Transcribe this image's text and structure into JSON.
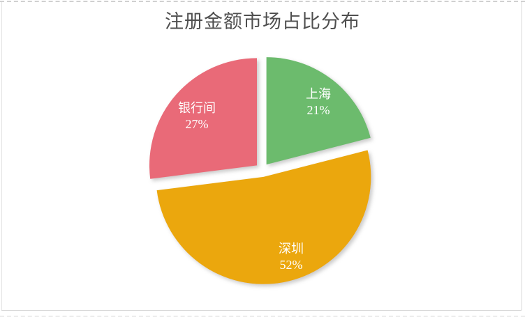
{
  "chart_data": {
    "type": "pie",
    "title": "注册金额市场占比分布",
    "title_color": "#4f4f4f",
    "direction": "clockwise",
    "start_angle_deg": 0,
    "exploded": true,
    "legend": "none",
    "label_style": "category name and percent, white text inside slices",
    "label_text_color": "#ffffff",
    "categories": [
      "上海",
      "深圳",
      "银行间"
    ],
    "values": [
      21,
      52,
      27
    ],
    "slices": [
      {
        "name": "上海",
        "value": 21,
        "pct_label": "21%",
        "color": "#6CBB6D"
      },
      {
        "name": "深圳",
        "value": 52,
        "pct_label": "52%",
        "color": "#EBA70A"
      },
      {
        "name": "银行间",
        "value": 27,
        "pct_label": "27%",
        "color": "#E96B78"
      }
    ]
  },
  "frame": {
    "border_color": "#d8d8d8",
    "dashed_color": "#d0d0d0",
    "background": "#ffffff"
  }
}
